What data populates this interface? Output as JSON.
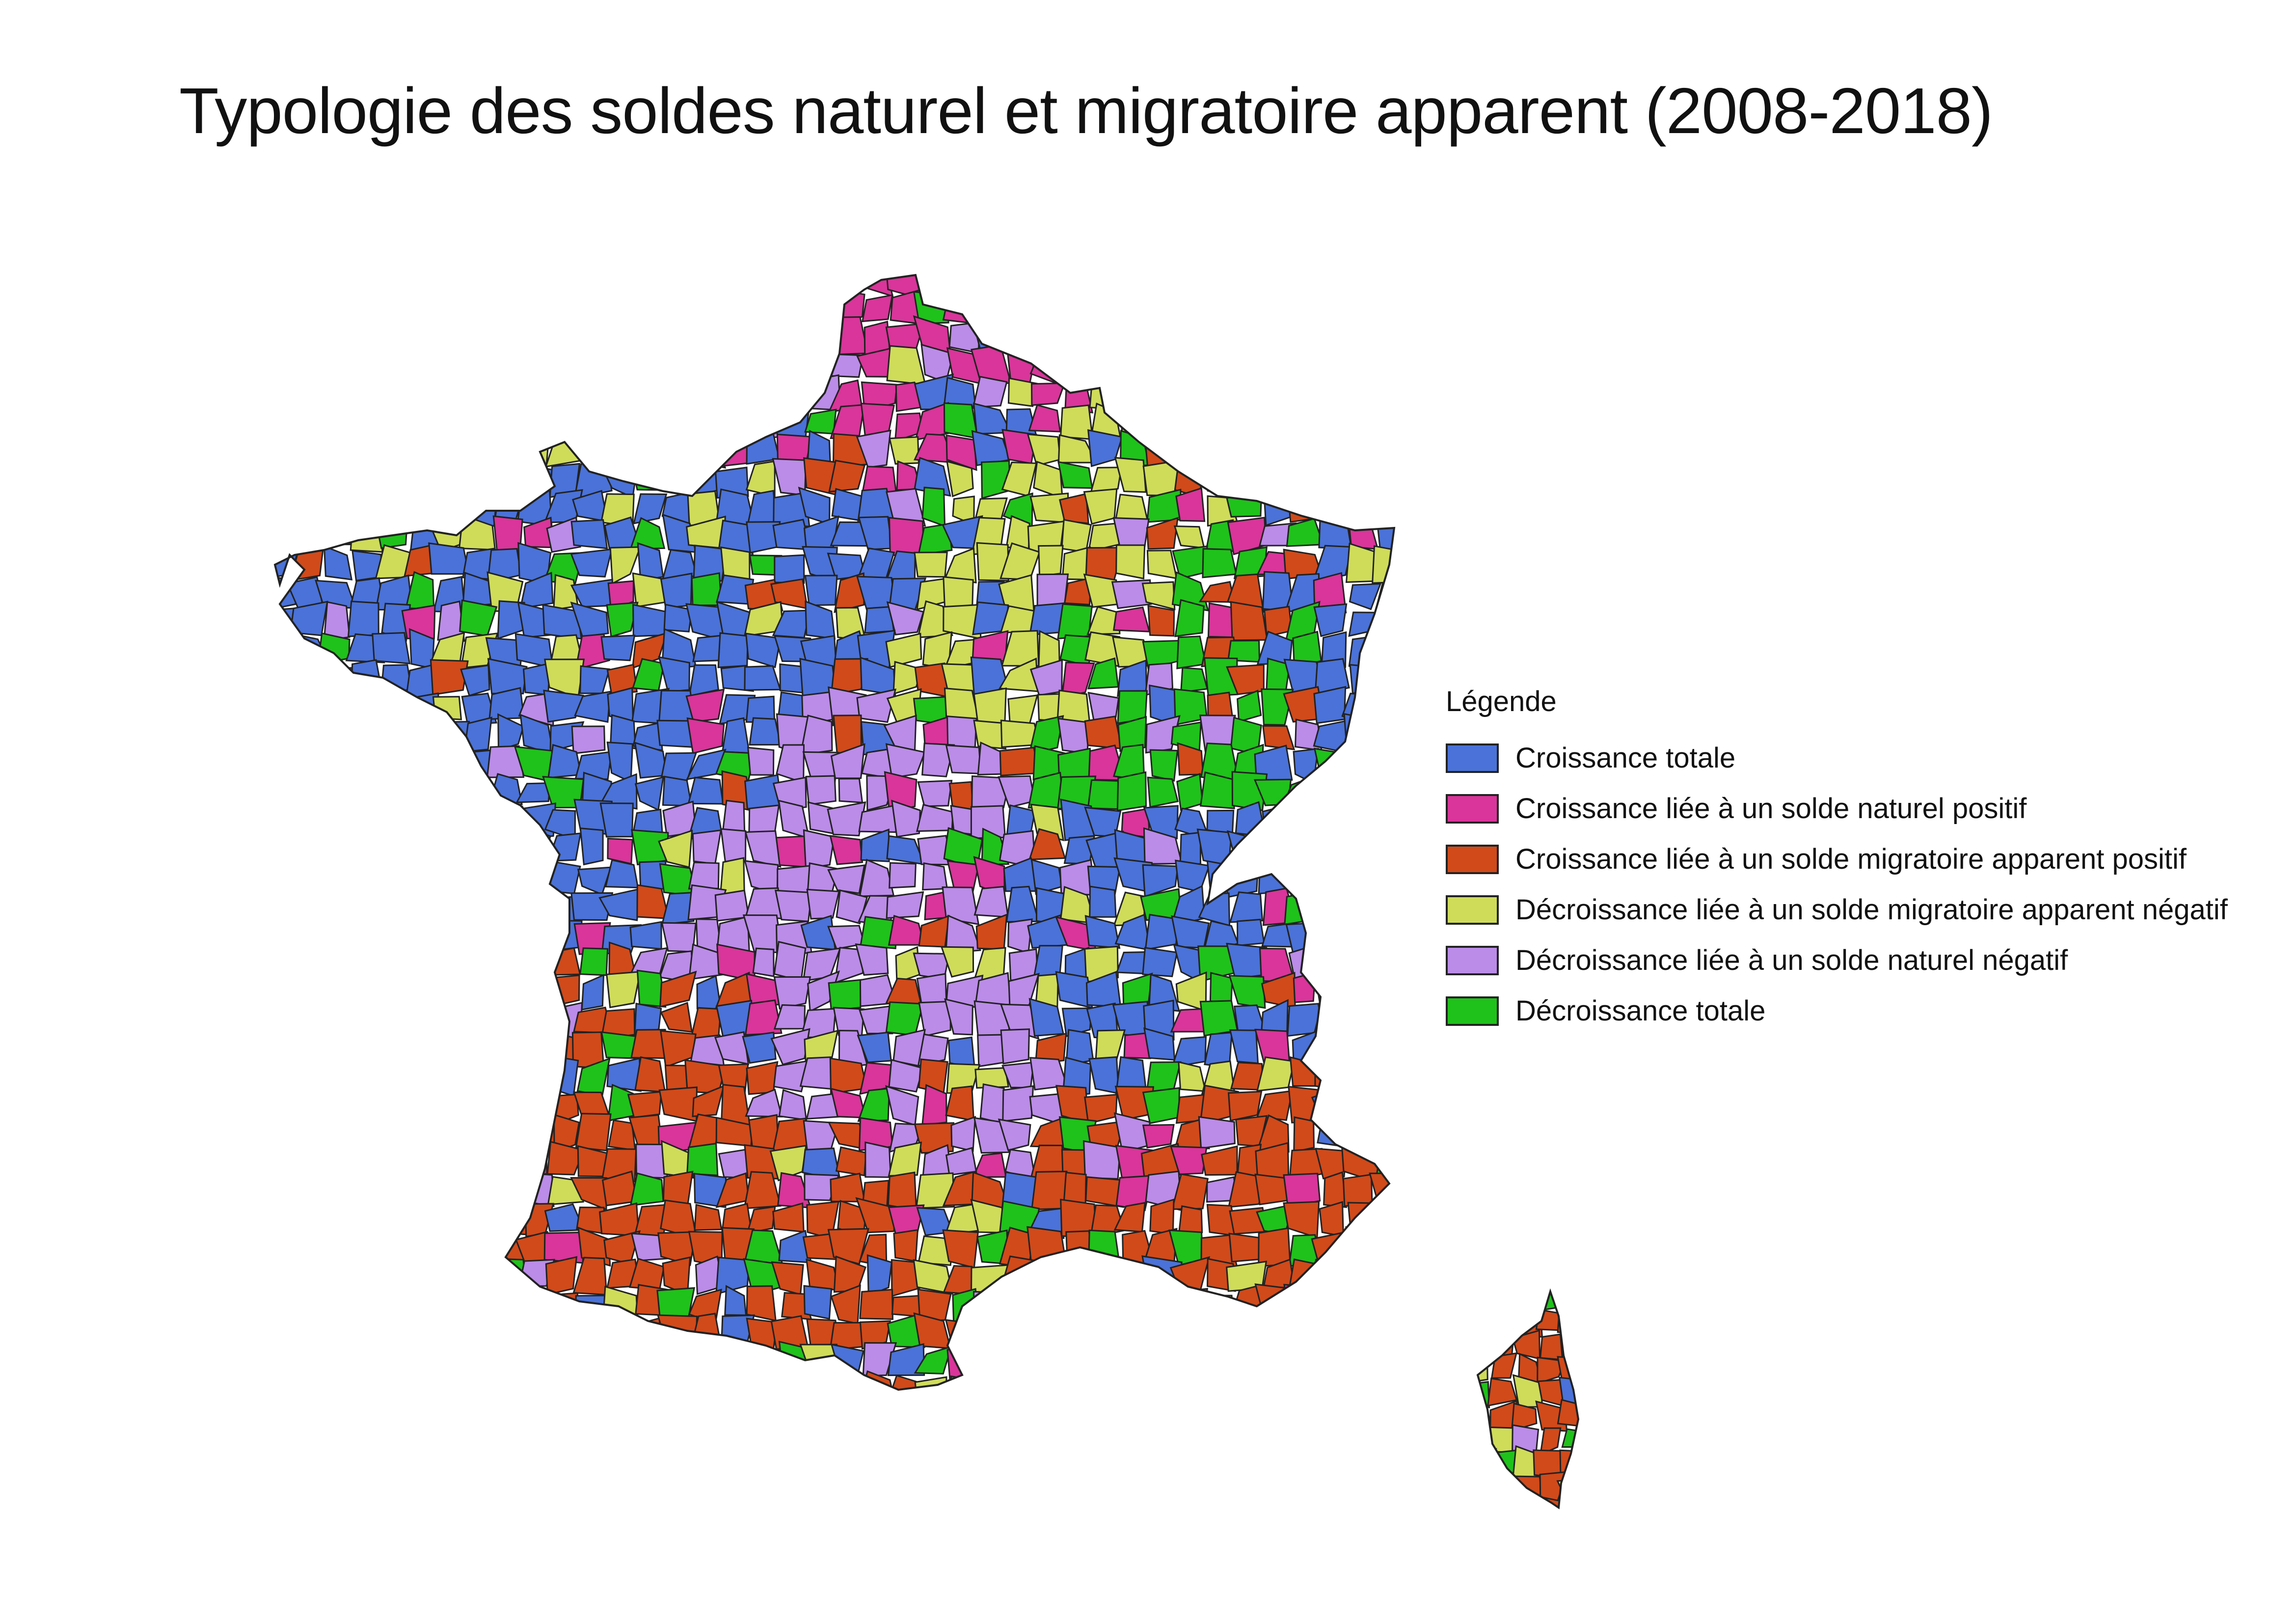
{
  "title": "Typologie des soldes naturel et migratoire apparent  (2008-2018)",
  "legend": {
    "title": "Légende",
    "items": [
      {
        "label": "Croissance totale",
        "color": "#4a72d8"
      },
      {
        "label": "Croissance liée à un solde naturel positif",
        "color": "#d9359a"
      },
      {
        "label": "Croissance liée à un solde migratoire apparent positif",
        "color": "#d14a1a"
      },
      {
        "label": "Décroissance liée à un solde migratoire apparent négatif",
        "color": "#cfdc5a"
      },
      {
        "label": "Décroissance liée à un solde naturel négatif",
        "color": "#bb8ce8"
      },
      {
        "label": "Décroissance totale",
        "color": "#1fc21a"
      }
    ]
  },
  "map": {
    "border_color": "#222222",
    "regions": [
      {
        "zone": "north",
        "class_index": 1
      },
      {
        "zone": "normandy",
        "class_index": 0
      },
      {
        "zone": "brittany",
        "class_index": 0
      },
      {
        "zone": "northeast",
        "class_index": 5
      },
      {
        "zone": "champagne",
        "class_index": 3
      },
      {
        "zone": "alsace",
        "class_index": 0
      },
      {
        "zone": "centre",
        "class_index": 4
      },
      {
        "zone": "west",
        "class_index": 0
      },
      {
        "zone": "rhone-alps",
        "class_index": 0
      },
      {
        "zone": "southwest",
        "class_index": 2
      },
      {
        "zone": "massif",
        "class_index": 4
      },
      {
        "zone": "south",
        "class_index": 2
      },
      {
        "zone": "provence",
        "class_index": 2
      },
      {
        "zone": "corsica",
        "class_index": 2
      }
    ]
  }
}
